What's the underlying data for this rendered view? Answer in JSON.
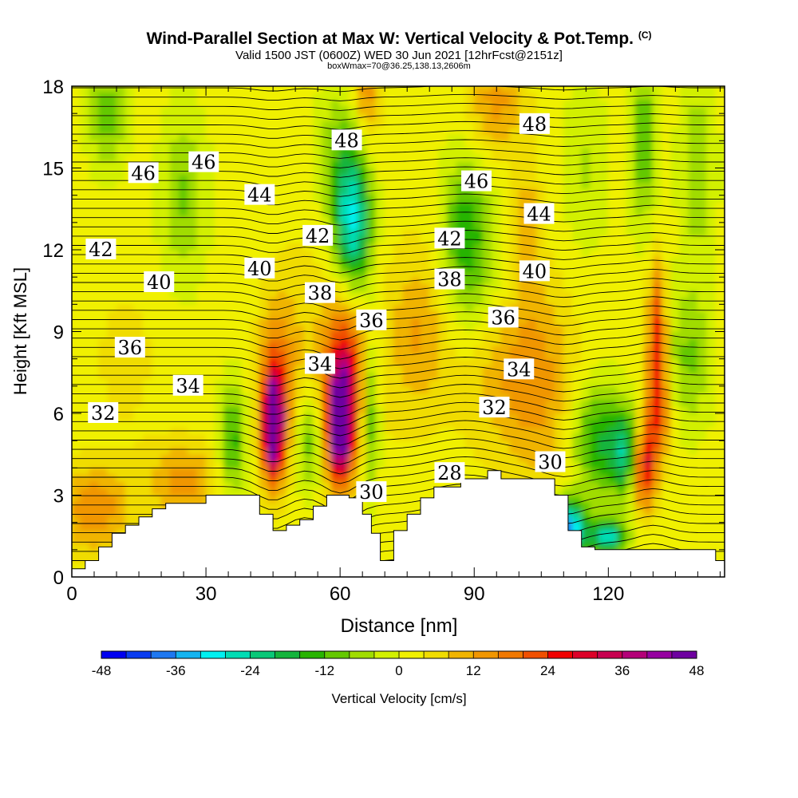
{
  "title": {
    "main": "Wind-Parallel Section at Max W: Vertical Velocity & Pot.Temp.",
    "copyright": "(C)",
    "valid": "Valid 1500 JST (0600Z) WED 30 Jun 2021 [12hrFcst@2151z]",
    "boxmax": "boxWmax=70@36.25,138.13,2606m"
  },
  "chart_data": {
    "type": "heatmap",
    "xlabel": "Distance [nm]",
    "ylabel": "Height [Kft MSL]",
    "xlim": [
      0,
      146
    ],
    "ylim": [
      0,
      18
    ],
    "xticks": [
      "0",
      "30",
      "60",
      "90",
      "120"
    ],
    "yticks": [
      "0",
      "3",
      "6",
      "9",
      "12",
      "15",
      "18"
    ],
    "colorbar": {
      "label": "Vertical Velocity [cm/s]",
      "ticks": [
        "-48",
        "-36",
        "-24",
        "-12",
        "0",
        "12",
        "24",
        "36",
        "48"
      ],
      "range": [
        -48,
        48
      ],
      "colors": [
        "#0000f0",
        "#0a3cf0",
        "#1e78f0",
        "#14b4f0",
        "#00f0f0",
        "#00dcb4",
        "#0ac878",
        "#14b43c",
        "#28b400",
        "#64c800",
        "#a0dc00",
        "#d2f000",
        "#f0f000",
        "#f0dc00",
        "#f0b400",
        "#f09600",
        "#f07800",
        "#f05000",
        "#f00000",
        "#dc0028",
        "#c80050",
        "#b40078",
        "#9600a0",
        "#6e00a0"
      ]
    },
    "theta_contour_labels": [
      {
        "x": 7,
        "y": 6.0,
        "text": "32"
      },
      {
        "x": 26,
        "y": 7.0,
        "text": "34"
      },
      {
        "x": 13,
        "y": 8.4,
        "text": "36"
      },
      {
        "x": 19.5,
        "y": 10.8,
        "text": "40"
      },
      {
        "x": 6.5,
        "y": 12.0,
        "text": "42"
      },
      {
        "x": 16,
        "y": 14.8,
        "text": "46"
      },
      {
        "x": 29.5,
        "y": 15.2,
        "text": "46"
      },
      {
        "x": 42,
        "y": 14.0,
        "text": "44"
      },
      {
        "x": 42,
        "y": 11.3,
        "text": "40"
      },
      {
        "x": 55,
        "y": 12.5,
        "text": "42"
      },
      {
        "x": 55.5,
        "y": 10.4,
        "text": "38"
      },
      {
        "x": 55.5,
        "y": 7.8,
        "text": "34"
      },
      {
        "x": 61.5,
        "y": 16.0,
        "text": "48"
      },
      {
        "x": 67,
        "y": 9.4,
        "text": "36"
      },
      {
        "x": 67,
        "y": 3.1,
        "text": "30"
      },
      {
        "x": 84.5,
        "y": 12.4,
        "text": "42"
      },
      {
        "x": 84.5,
        "y": 10.9,
        "text": "38"
      },
      {
        "x": 84.5,
        "y": 3.8,
        "text": "28"
      },
      {
        "x": 90.5,
        "y": 14.5,
        "text": "46"
      },
      {
        "x": 94.5,
        "y": 6.2,
        "text": "32"
      },
      {
        "x": 96.5,
        "y": 9.5,
        "text": "36"
      },
      {
        "x": 100,
        "y": 7.6,
        "text": "34"
      },
      {
        "x": 103.5,
        "y": 11.2,
        "text": "40"
      },
      {
        "x": 103.5,
        "y": 16.6,
        "text": "48"
      },
      {
        "x": 104.5,
        "y": 13.3,
        "text": "44"
      },
      {
        "x": 107,
        "y": 4.2,
        "text": "30"
      }
    ],
    "terrain_top_kft": [
      [
        0,
        0.3
      ],
      [
        3,
        0.6
      ],
      [
        6,
        1.1
      ],
      [
        9,
        1.6
      ],
      [
        12,
        1.9
      ],
      [
        15,
        2.2
      ],
      [
        18,
        2.5
      ],
      [
        21,
        2.7
      ],
      [
        27,
        2.7
      ],
      [
        30,
        3.0
      ],
      [
        39,
        3.0
      ],
      [
        42,
        2.3
      ],
      [
        45,
        1.7
      ],
      [
        48,
        1.9
      ],
      [
        51,
        2.1
      ],
      [
        54,
        2.6
      ],
      [
        57,
        3.0
      ],
      [
        62,
        2.9
      ],
      [
        65,
        2.3
      ],
      [
        67,
        1.6
      ],
      [
        69,
        0.6
      ],
      [
        72,
        1.7
      ],
      [
        75,
        2.3
      ],
      [
        78,
        2.9
      ],
      [
        81,
        3.3
      ],
      [
        87,
        3.6
      ],
      [
        93,
        3.9
      ],
      [
        96,
        3.6
      ],
      [
        105,
        3.6
      ],
      [
        108,
        3.0
      ],
      [
        111,
        1.7
      ],
      [
        114,
        1.1
      ],
      [
        117,
        1.0
      ],
      [
        126,
        1.0
      ],
      [
        141,
        1.0
      ],
      [
        144,
        0.6
      ],
      [
        146,
        0.6
      ]
    ]
  }
}
